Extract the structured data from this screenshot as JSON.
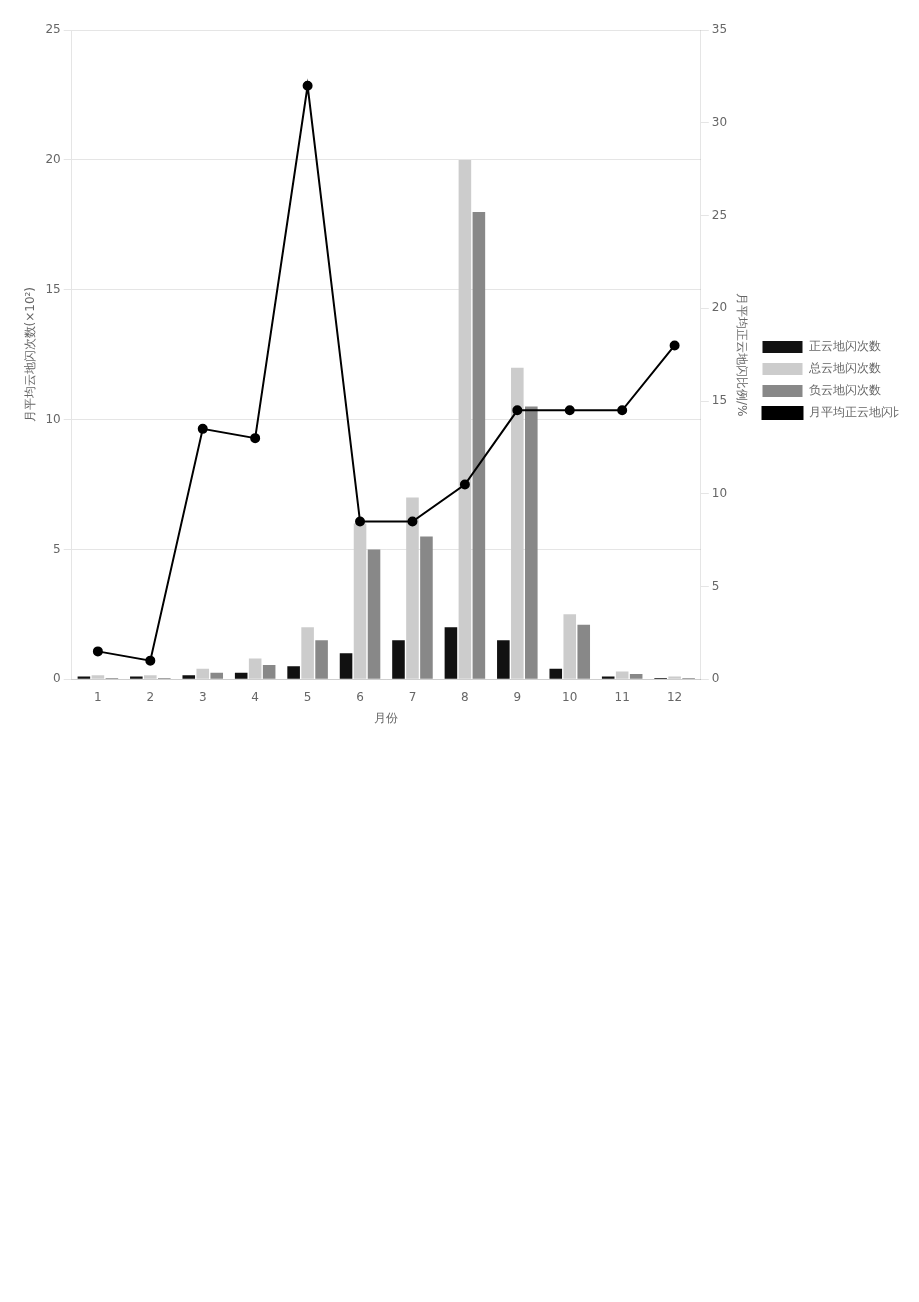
{
  "chart_data": {
    "type": "bar",
    "categories": [
      "1",
      "2",
      "3",
      "4",
      "5",
      "6",
      "7",
      "8",
      "9",
      "10",
      "11",
      "12"
    ],
    "series": [
      {
        "name": "正云地闪次数",
        "color": "#111111",
        "values": [
          0.1,
          0.1,
          0.15,
          0.25,
          0.5,
          1.0,
          1.5,
          2.0,
          1.5,
          0.4,
          0.1,
          0.05
        ]
      },
      {
        "name": "总云地闪次数",
        "color": "#cccccc",
        "values": [
          0.15,
          0.15,
          0.4,
          0.8,
          2.0,
          6.0,
          7.0,
          20.0,
          12.0,
          2.5,
          0.3,
          0.1
        ]
      },
      {
        "name": "负云地闪次数",
        "color": "#888888",
        "values": [
          0.05,
          0.05,
          0.25,
          0.55,
          1.5,
          5.0,
          5.5,
          18.0,
          10.5,
          2.1,
          0.2,
          0.05
        ]
      },
      {
        "name": "月平均正云地闪比例",
        "type": "line",
        "axis": "y2",
        "color": "#000000",
        "marker": "circle",
        "line_style": "solid",
        "values": [
          1.5,
          1.0,
          13.5,
          13.0,
          32.0,
          8.5,
          8.5,
          10.5,
          14.5,
          14.5,
          14.5,
          18.0
        ]
      }
    ],
    "x_label": "月份",
    "y_label": "月平均云地闪次数(×10²)",
    "y2_label": "月平均正云地闪比例/%",
    "ylim": [
      0,
      25
    ],
    "yticks": [
      0,
      5,
      10,
      15,
      20,
      25
    ],
    "y2lim": [
      0,
      35
    ],
    "y2ticks": [
      0,
      5,
      10,
      15,
      20,
      25,
      30,
      35
    ],
    "grid": true,
    "legend": "right"
  }
}
